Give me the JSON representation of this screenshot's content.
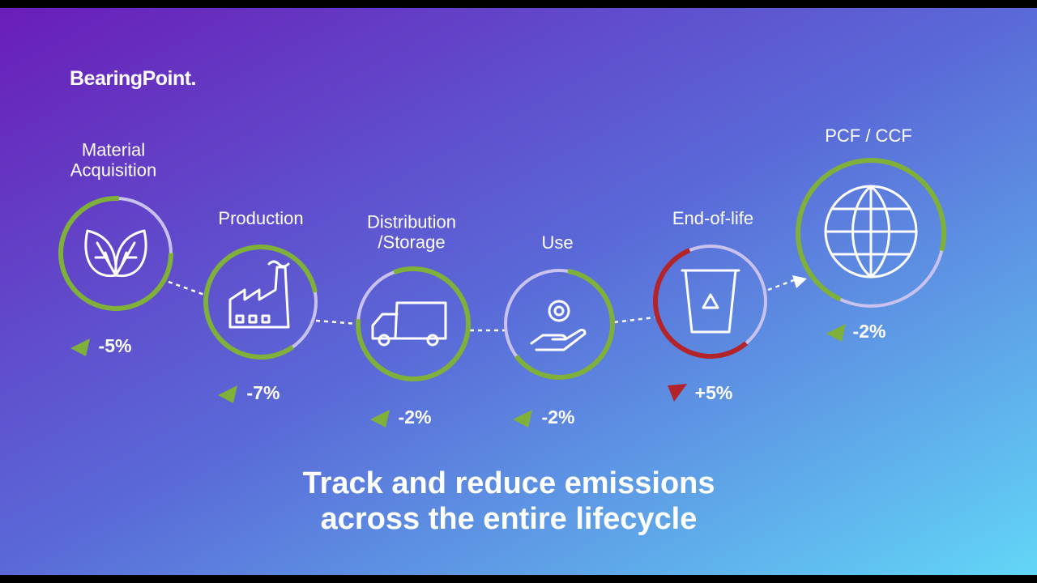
{
  "brand": "BearingPoint.",
  "stages": [
    {
      "label": "Material\nAcquisition",
      "change": "-5%"
    },
    {
      "label": "Production",
      "change": "-7%"
    },
    {
      "label": "Distribution\n/Storage",
      "change": "-2%"
    },
    {
      "label": "Use",
      "change": "-2%"
    },
    {
      "label": "End-of-life",
      "change": "+5%"
    },
    {
      "label": "PCF / CCF",
      "change": "-2%"
    }
  ],
  "tagline": "Track and reduce emissions\nacross the entire lifecycle"
}
